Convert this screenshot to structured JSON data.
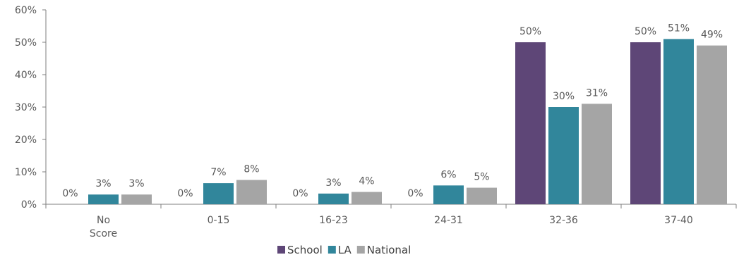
{
  "chart_data": {
    "type": "bar",
    "title": "",
    "xlabel": "",
    "ylabel": "",
    "ylim": [
      0,
      60
    ],
    "yticks": [
      0,
      10,
      20,
      30,
      40,
      50,
      60
    ],
    "ytick_labels": [
      "0%",
      "10%",
      "20%",
      "30%",
      "40%",
      "50%",
      "60%"
    ],
    "grid": false,
    "legend_position": "bottom",
    "categories": [
      [
        "No",
        "Score"
      ],
      [
        "0-15"
      ],
      [
        "16-23"
      ],
      [
        "24-31"
      ],
      [
        "32-36"
      ],
      [
        "37-40"
      ]
    ],
    "series": [
      {
        "name": "School",
        "color": "#5e4677",
        "values": [
          0,
          0,
          0,
          0,
          50,
          50
        ],
        "labels": [
          "0%",
          "0%",
          "0%",
          "0%",
          "50%",
          "50%"
        ]
      },
      {
        "name": "LA",
        "color": "#31869b",
        "values": [
          3,
          6.5,
          3.3,
          5.8,
          30,
          51
        ],
        "labels": [
          "3%",
          "7%",
          "3%",
          "6%",
          "30%",
          "51%"
        ]
      },
      {
        "name": "National",
        "color": "#a5a5a5",
        "values": [
          3,
          7.5,
          3.8,
          5.1,
          31,
          49
        ],
        "labels": [
          "3%",
          "8%",
          "4%",
          "5%",
          "31%",
          "49%"
        ]
      }
    ]
  }
}
